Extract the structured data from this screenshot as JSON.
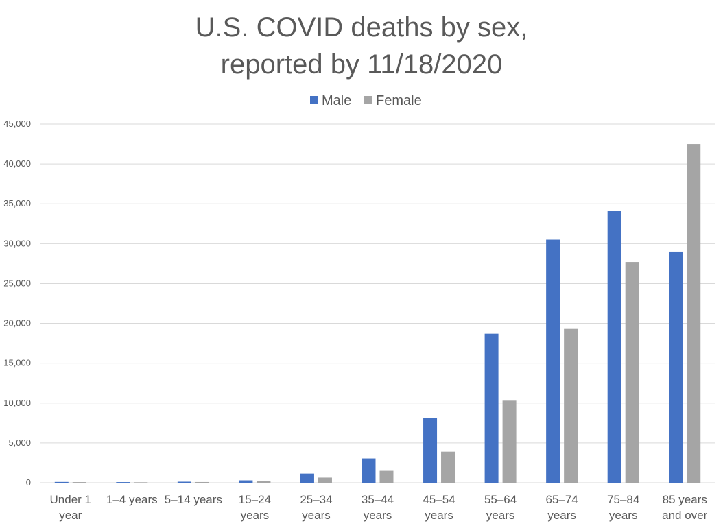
{
  "chart_data": {
    "type": "bar",
    "title_lines": [
      "U.S. COVID deaths by sex,",
      "reported by 11/18/2020"
    ],
    "categories": [
      [
        "Under 1",
        "year"
      ],
      [
        "1–4 years"
      ],
      [
        "5–14 years"
      ],
      [
        "15–24",
        "years"
      ],
      [
        "25–34",
        "years"
      ],
      [
        "35–44",
        "years"
      ],
      [
        "45–54",
        "years"
      ],
      [
        "55–64",
        "years"
      ],
      [
        "65–74",
        "years"
      ],
      [
        "75–84",
        "years"
      ],
      [
        "85 years",
        "and over"
      ]
    ],
    "series": [
      {
        "name": "Male",
        "color": "#4472c4",
        "values": [
          100,
          80,
          130,
          300,
          1150,
          3050,
          8100,
          18700,
          30500,
          34100,
          29000
        ]
      },
      {
        "name": "Female",
        "color": "#a5a5a5",
        "values": [
          80,
          60,
          90,
          200,
          650,
          1500,
          3900,
          10300,
          19300,
          27700,
          42500
        ]
      }
    ],
    "ylim": [
      0,
      45000
    ],
    "yticks": [
      0,
      5000,
      10000,
      15000,
      20000,
      25000,
      30000,
      35000,
      40000,
      45000
    ],
    "ytick_labels": [
      "0",
      "5,000",
      "10,000",
      "15,000",
      "20,000",
      "25,000",
      "30,000",
      "35,000",
      "40,000",
      "45,000"
    ],
    "grid": true,
    "legend_position": "top-center"
  }
}
